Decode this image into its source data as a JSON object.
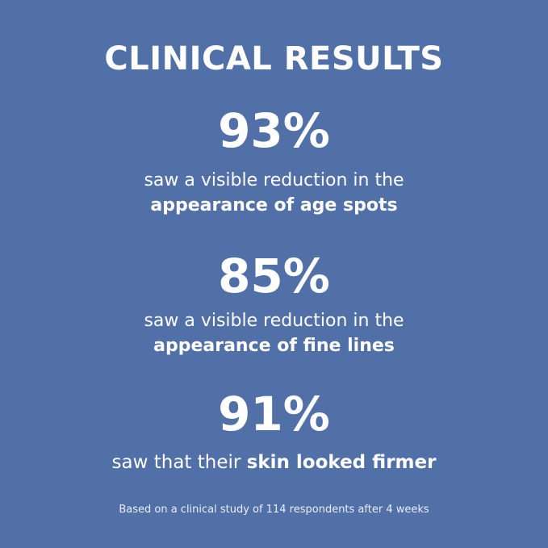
{
  "title": "CLINICAL RESULTS",
  "results": [
    {
      "percent": "93%",
      "line1": "saw a visible reduction in the",
      "line2_bold": "appearance of age spots"
    },
    {
      "percent": "85%",
      "line1": "saw a visible reduction in the",
      "line2_bold": "appearance of fine lines"
    },
    {
      "percent": "91%",
      "line1_prefix": "saw that their ",
      "line1_bold": "skin looked firmer"
    }
  ],
  "footnote": "Based on a clinical study of 114 respondents after 4 weeks",
  "colors": {
    "background": "#5170a8",
    "text": "#ffffff"
  }
}
